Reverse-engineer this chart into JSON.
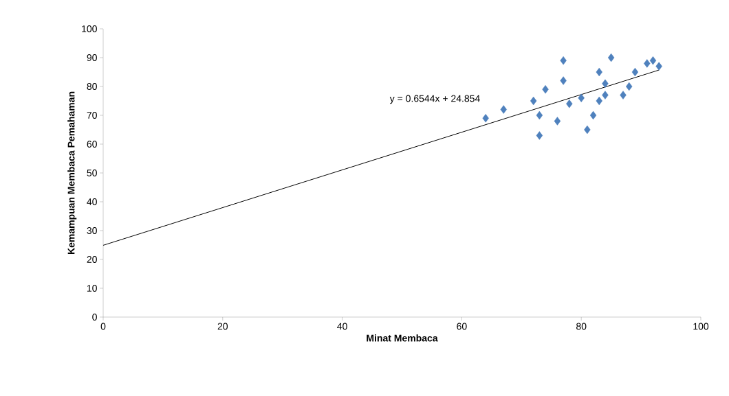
{
  "chart_data": {
    "type": "scatter",
    "xlabel": "Minat Membaca",
    "ylabel": "Kemampuan Membaca Pemahaman",
    "xlim": [
      0,
      100
    ],
    "xticks": [
      0,
      20,
      40,
      60,
      80,
      100
    ],
    "ylim": [
      0,
      100
    ],
    "yticks": [
      0,
      10,
      20,
      30,
      40,
      50,
      60,
      70,
      80,
      90,
      100
    ],
    "grid": false,
    "marker": "diamond",
    "series": [
      {
        "color": "#4f81bd",
        "x": [
          64,
          67,
          72,
          73,
          73,
          74,
          77,
          77,
          76,
          78,
          80,
          81,
          82,
          83,
          83,
          84,
          84,
          85,
          87,
          88,
          89,
          91,
          92,
          93
        ],
        "values": [
          69,
          72,
          75,
          70,
          63,
          79,
          89,
          82,
          68,
          74,
          76,
          65,
          70,
          85,
          75,
          81,
          77,
          90,
          77,
          80,
          85,
          88,
          89,
          87
        ]
      },
      {
        "type": "line",
        "color": "#000000",
        "marker": "none",
        "x": [
          0,
          93
        ],
        "values": [
          24.9,
          85.7
        ]
      }
    ],
    "annotations": [
      "y = 0.6544x + 24.854"
    ]
  }
}
